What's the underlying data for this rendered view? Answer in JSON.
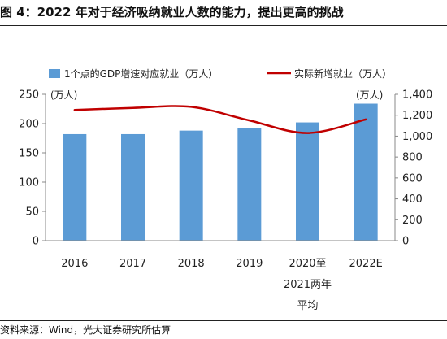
{
  "figure": {
    "title": "图 4：2022 年对于经济吸纳就业人数的能力，提出更高的挑战",
    "source": "资料来源：Wind，光大证券研究所估算"
  },
  "chart_data": {
    "type": "bar",
    "categories": [
      "2016",
      "2017",
      "2018",
      "2019",
      "2020至2021两年平均",
      "2022E"
    ],
    "category_lines": [
      [
        "2016"
      ],
      [
        "2017"
      ],
      [
        "2018"
      ],
      [
        "2019"
      ],
      [
        "2020至",
        "2021两年",
        "平均"
      ],
      [
        "2022E"
      ]
    ],
    "series": [
      {
        "name": "1个点的GDP增速对应就业（万人）",
        "type": "bar",
        "axis": "left",
        "color": "#5B9BD5",
        "values": [
          182,
          182,
          188,
          193,
          202,
          234
        ]
      },
      {
        "name": "实际新增就业（万人）",
        "type": "line",
        "axis": "right",
        "color": "#C00000",
        "values": [
          1250,
          1270,
          1280,
          1150,
          1030,
          1160
        ]
      }
    ],
    "left_axis": {
      "unit_label": "(万人)",
      "range": [
        0,
        250
      ],
      "ticks": [
        0,
        50,
        100,
        150,
        200,
        250
      ],
      "tick_labels": [
        "0",
        "50",
        "100",
        "150",
        "200",
        "250"
      ]
    },
    "right_axis": {
      "unit_label": "(万人)",
      "range": [
        0,
        1400
      ],
      "ticks": [
        0,
        200,
        400,
        600,
        800,
        1000,
        1200,
        1400
      ],
      "tick_labels": [
        "0",
        "200",
        "400",
        "600",
        "800",
        "1,000",
        "1,200",
        "1,400"
      ]
    },
    "grid": false,
    "legend_position": "top"
  }
}
